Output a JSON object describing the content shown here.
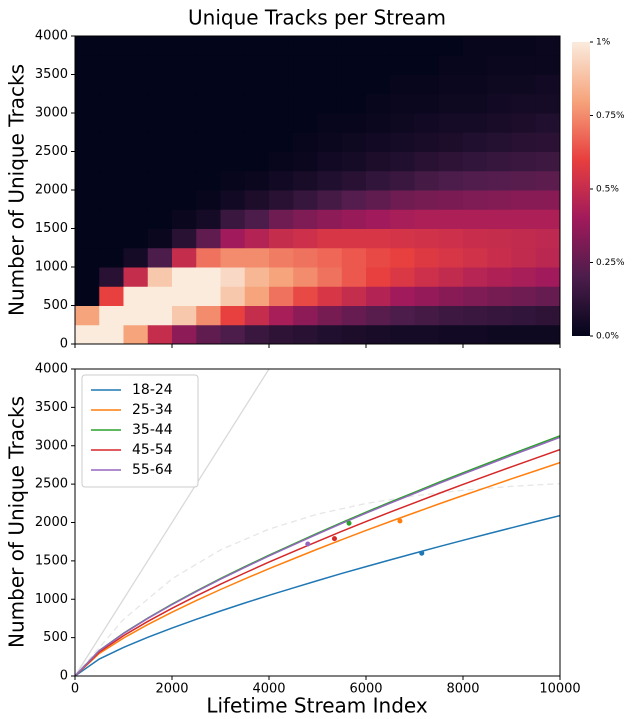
{
  "chart_data": [
    {
      "type": "heatmap",
      "title": "Unique Tracks per Stream",
      "ylabel": "Number of Unique Tracks",
      "xlim": [
        0,
        10000
      ],
      "ylim": [
        0,
        4000
      ],
      "yticks": [
        0,
        500,
        1000,
        1500,
        2000,
        2500,
        3000,
        3500,
        4000
      ],
      "x_bins": [
        0,
        500,
        1000,
        1500,
        2000,
        2500,
        3000,
        3500,
        4000,
        4500,
        5000,
        5500,
        6000,
        6500,
        7000,
        7500,
        8000,
        8500,
        9000,
        9500,
        10000
      ],
      "y_bins": [
        0,
        250,
        500,
        750,
        1000,
        1250,
        1500,
        1750,
        2000,
        2250,
        2500,
        2750,
        3000,
        3250,
        3500,
        3750,
        4000
      ],
      "z": [
        [
          1,
          0.8,
          0,
          0,
          0,
          0,
          0,
          0,
          0,
          0,
          0,
          0,
          0,
          0,
          0,
          0
        ],
        [
          1,
          1,
          0.6,
          0.1,
          0,
          0,
          0,
          0,
          0,
          0,
          0,
          0,
          0,
          0,
          0,
          0
        ],
        [
          0.8,
          1,
          1,
          0.5,
          0.05,
          0,
          0,
          0,
          0,
          0,
          0,
          0,
          0,
          0,
          0,
          0
        ],
        [
          0.5,
          1,
          1,
          0.9,
          0.2,
          0.02,
          0,
          0,
          0,
          0,
          0,
          0,
          0,
          0,
          0,
          0
        ],
        [
          0.35,
          0.9,
          1,
          1,
          0.5,
          0.1,
          0.02,
          0,
          0,
          0,
          0,
          0,
          0,
          0,
          0,
          0
        ],
        [
          0.25,
          0.75,
          1,
          1,
          0.7,
          0.25,
          0.05,
          0.01,
          0,
          0,
          0,
          0,
          0,
          0,
          0,
          0
        ],
        [
          0.2,
          0.6,
          0.9,
          0.95,
          0.75,
          0.4,
          0.15,
          0.04,
          0.01,
          0,
          0,
          0,
          0,
          0,
          0,
          0
        ],
        [
          0.15,
          0.5,
          0.8,
          0.85,
          0.75,
          0.45,
          0.2,
          0.07,
          0.02,
          0,
          0,
          0,
          0,
          0,
          0,
          0
        ],
        [
          0.12,
          0.42,
          0.7,
          0.8,
          0.72,
          0.5,
          0.28,
          0.1,
          0.04,
          0.01,
          0,
          0,
          0,
          0,
          0,
          0
        ],
        [
          0.1,
          0.35,
          0.62,
          0.75,
          0.7,
          0.52,
          0.32,
          0.14,
          0.06,
          0.02,
          0.01,
          0,
          0,
          0,
          0,
          0
        ],
        [
          0.08,
          0.3,
          0.55,
          0.7,
          0.68,
          0.55,
          0.35,
          0.18,
          0.08,
          0.04,
          0.02,
          0.01,
          0,
          0,
          0,
          0
        ],
        [
          0.07,
          0.26,
          0.5,
          0.65,
          0.65,
          0.55,
          0.38,
          0.22,
          0.1,
          0.05,
          0.03,
          0.01,
          0,
          0,
          0,
          0
        ],
        [
          0.06,
          0.23,
          0.45,
          0.6,
          0.62,
          0.55,
          0.4,
          0.25,
          0.13,
          0.07,
          0.04,
          0.02,
          0.01,
          0,
          0,
          0
        ],
        [
          0.05,
          0.2,
          0.4,
          0.56,
          0.6,
          0.54,
          0.42,
          0.28,
          0.15,
          0.08,
          0.05,
          0.03,
          0.02,
          0.01,
          0,
          0
        ],
        [
          0.05,
          0.18,
          0.37,
          0.52,
          0.57,
          0.53,
          0.43,
          0.3,
          0.18,
          0.1,
          0.06,
          0.04,
          0.02,
          0.01,
          0,
          0
        ],
        [
          0.04,
          0.16,
          0.34,
          0.49,
          0.55,
          0.52,
          0.43,
          0.31,
          0.2,
          0.12,
          0.07,
          0.05,
          0.03,
          0.02,
          0.01,
          0
        ],
        [
          0.04,
          0.15,
          0.32,
          0.46,
          0.53,
          0.51,
          0.43,
          0.32,
          0.21,
          0.13,
          0.08,
          0.05,
          0.03,
          0.02,
          0.01,
          0.01
        ],
        [
          0.03,
          0.14,
          0.3,
          0.44,
          0.51,
          0.5,
          0.43,
          0.33,
          0.22,
          0.14,
          0.09,
          0.06,
          0.04,
          0.03,
          0.02,
          0.01
        ],
        [
          0.03,
          0.13,
          0.28,
          0.42,
          0.49,
          0.49,
          0.43,
          0.34,
          0.23,
          0.15,
          0.1,
          0.07,
          0.05,
          0.03,
          0.02,
          0.01
        ],
        [
          0.03,
          0.12,
          0.26,
          0.4,
          0.47,
          0.48,
          0.43,
          0.34,
          0.24,
          0.16,
          0.11,
          0.08,
          0.05,
          0.04,
          0.02,
          0.02
        ]
      ],
      "colormap": [
        "#03051a",
        "#4c1d4b",
        "#a11a5b",
        "#e83f3f",
        "#f6a47c",
        "#faebdd"
      ],
      "clim": [
        0,
        1
      ],
      "cticks": [
        {
          "value": 0,
          "label": "0.0%"
        },
        {
          "value": 0.25,
          "label": "0.25%"
        },
        {
          "value": 0.5,
          "label": "0.5%"
        },
        {
          "value": 0.75,
          "label": "0.75%"
        },
        {
          "value": 1,
          "label": "1%"
        }
      ]
    },
    {
      "type": "line",
      "xlabel": "Lifetime Stream Index",
      "ylabel": "Number of Unique Tracks",
      "xlim": [
        0,
        10000
      ],
      "ylim": [
        0,
        4000
      ],
      "xticks": [
        0,
        2000,
        4000,
        6000,
        8000,
        10000
      ],
      "yticks": [
        0,
        500,
        1000,
        1500,
        2000,
        2500,
        3000,
        3500,
        4000
      ],
      "legend": "upper left",
      "x": [
        0,
        500,
        1000,
        1500,
        2000,
        2500,
        3000,
        3500,
        4000,
        4500,
        5000,
        5500,
        6000,
        6500,
        7000,
        7500,
        8000,
        8500,
        9000,
        9500,
        10000
      ],
      "series": [
        {
          "name": "18-24",
          "color": "#1f77b4",
          "values": [
            0,
            221,
            372,
            504,
            625,
            739,
            847,
            951,
            1051,
            1147,
            1243,
            1336,
            1425,
            1513,
            1599,
            1685,
            1768,
            1850,
            1931,
            2011,
            2090
          ],
          "marker": {
            "x": 7150,
            "y": 1600
          }
        },
        {
          "name": "25-34",
          "color": "#ff7f0e",
          "values": [
            0,
            294,
            494,
            670,
            831,
            983,
            1127,
            1265,
            1398,
            1526,
            1653,
            1776,
            1896,
            2013,
            2127,
            2241,
            2352,
            2460,
            2569,
            2674,
            2780
          ],
          "marker": {
            "x": 6700,
            "y": 2020
          }
        },
        {
          "name": "35-44",
          "color": "#2ca02c",
          "values": [
            0,
            331,
            557,
            754,
            936,
            1107,
            1269,
            1424,
            1574,
            1718,
            1861,
            2000,
            2135,
            2266,
            2394,
            2523,
            2648,
            2770,
            2892,
            3011,
            3130
          ],
          "marker": {
            "x": 5650,
            "y": 1990
          }
        },
        {
          "name": "45-54",
          "color": "#d62728",
          "values": [
            0,
            312,
            525,
            711,
            882,
            1043,
            1196,
            1342,
            1484,
            1620,
            1754,
            1885,
            2012,
            2136,
            2257,
            2378,
            2496,
            2611,
            2726,
            2838,
            2950
          ],
          "marker": {
            "x": 5350,
            "y": 1790
          }
        },
        {
          "name": "55-64",
          "color": "#9467bd",
          "values": [
            0,
            329,
            553,
            750,
            930,
            1100,
            1261,
            1415,
            1564,
            1707,
            1849,
            1987,
            2121,
            2252,
            2379,
            2507,
            2631,
            2752,
            2874,
            2992,
            3110
          ],
          "marker": {
            "x": 4800,
            "y": 1720
          }
        }
      ],
      "reference": [
        {
          "x": [
            0,
            4000
          ],
          "values": [
            0,
            4000
          ],
          "color": "#d9d9d9",
          "dash": false
        },
        {
          "x": [
            0,
            1000,
            2000,
            3000,
            4000,
            5000,
            6000,
            7000,
            8000,
            9000,
            10000
          ],
          "values": [
            0,
            737,
            1266,
            1643,
            1914,
            2109,
            2248,
            2348,
            2420,
            2471,
            2507
          ],
          "color": "#e6e6e6",
          "dash": true
        }
      ]
    }
  ]
}
